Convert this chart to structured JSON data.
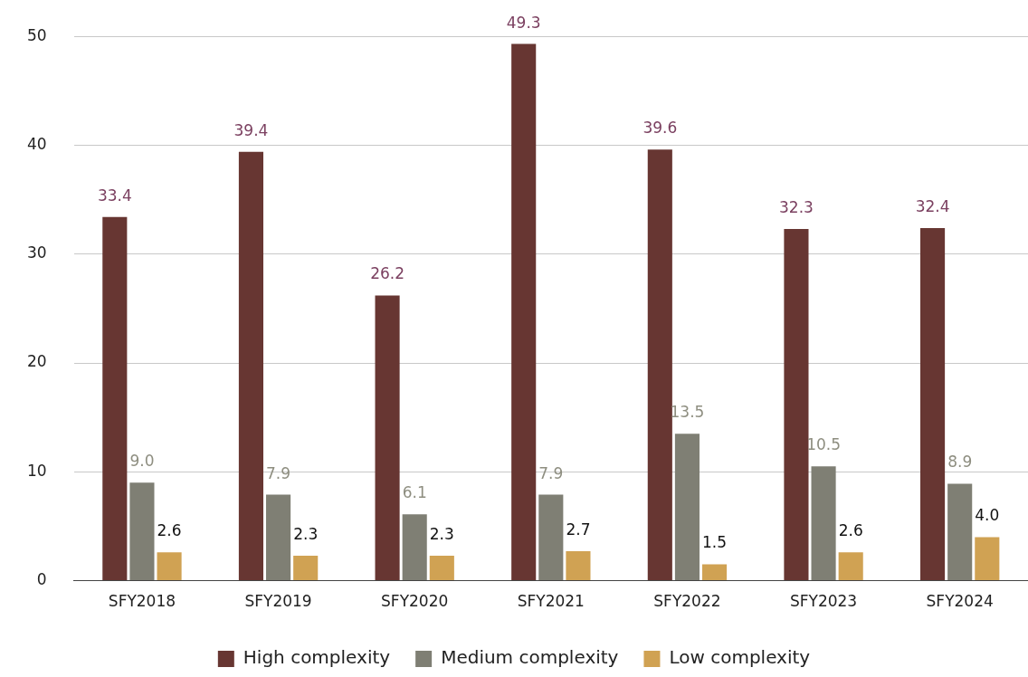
{
  "chart_data": {
    "type": "bar",
    "categories": [
      "SFY2018",
      "SFY2019",
      "SFY2020",
      "SFY2021",
      "SFY2022",
      "SFY2023",
      "SFY2024"
    ],
    "series": [
      {
        "name": "High complexity",
        "color": "#673632",
        "values": [
          33.4,
          39.4,
          26.2,
          49.3,
          39.6,
          32.3,
          32.4
        ],
        "value_labels": [
          "33.4",
          "39.4",
          "26.2",
          "49.3",
          "39.6",
          "32.3",
          "32.4"
        ]
      },
      {
        "name": "Medium complexity",
        "color": "#7f7f74",
        "values": [
          9.0,
          7.9,
          6.1,
          7.9,
          13.5,
          10.5,
          8.9
        ],
        "value_labels": [
          "9.0",
          "7.9",
          "6.1",
          "7.9",
          "13.5",
          "10.5",
          "8.9"
        ]
      },
      {
        "name": "Low complexity",
        "color": "#d0a253",
        "values": [
          2.6,
          2.3,
          2.3,
          2.7,
          1.5,
          2.6,
          4.0
        ],
        "value_labels": [
          "2.6",
          "2.3",
          "2.3",
          "2.7",
          "1.5",
          "2.6",
          "4.0"
        ]
      }
    ],
    "ylim": [
      0,
      50
    ],
    "yticks": [
      0,
      10,
      20,
      30,
      40,
      50
    ],
    "grid": "y",
    "legend": "bottom"
  }
}
